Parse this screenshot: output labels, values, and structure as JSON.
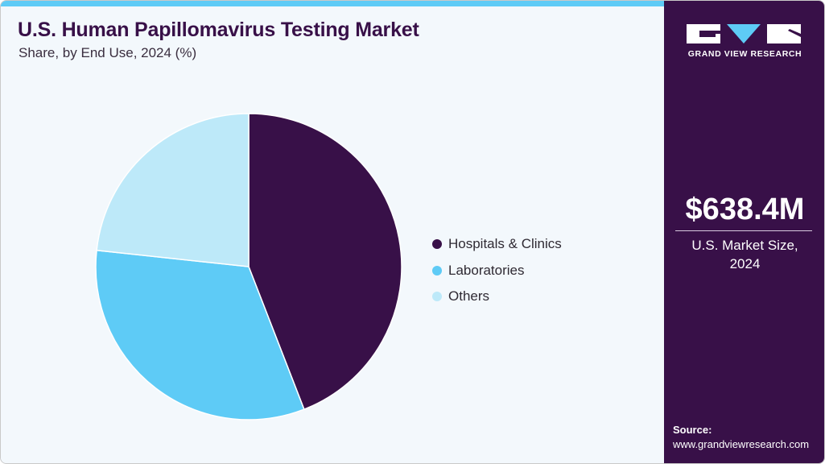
{
  "header": {
    "title": "U.S. Human Papillomavirus Testing Market",
    "subtitle": "Share, by End Use, 2024 (%)"
  },
  "legend": {
    "items": [
      {
        "label": "Hospitals & Clinics",
        "color": "#381048"
      },
      {
        "label": "Laboratories",
        "color": "#5ecbf6"
      },
      {
        "label": "Others",
        "color": "#bde9f9"
      }
    ]
  },
  "sidebar": {
    "logo_text": "GRAND VIEW RESEARCH",
    "market_value": "$638.4M",
    "market_label_line1": "U.S. Market Size,",
    "market_label_line2": "2024",
    "source_label": "Source:",
    "source_url": "www.grandviewresearch.com"
  },
  "colors": {
    "brand_dark": "#381048",
    "accent": "#5ecbf6",
    "light_accent": "#bde9f9",
    "background": "#f3f8fc"
  },
  "chart_data": {
    "type": "pie",
    "title": "U.S. Human Papillomavirus Testing Market",
    "subtitle": "Share, by End Use, 2024 (%)",
    "categories": [
      "Hospitals & Clinics",
      "Laboratories",
      "Others"
    ],
    "values": [
      44.1,
      32.6,
      23.3
    ],
    "colors": [
      "#381048",
      "#5ecbf6",
      "#bde9f9"
    ],
    "start_angle": "12 o'clock, clockwise",
    "legend_position": "right",
    "data_labels": false
  }
}
